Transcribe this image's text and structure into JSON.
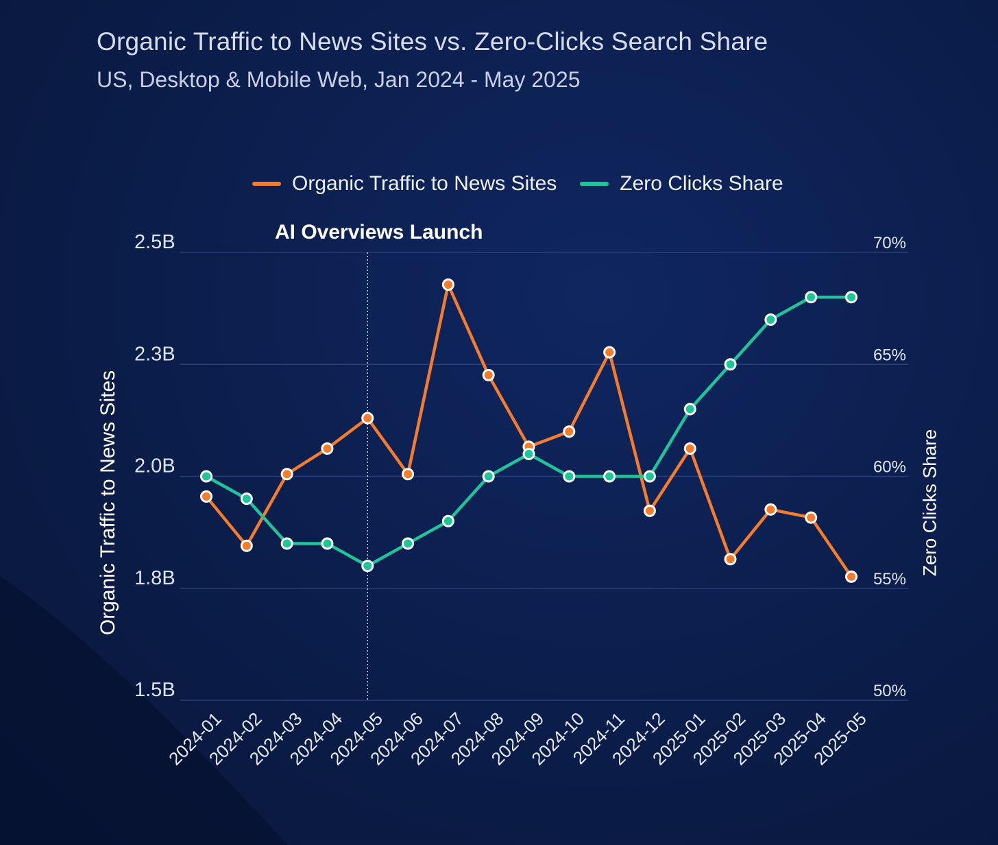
{
  "title": "Organic Traffic to News Sites vs. Zero-Clicks Search Share",
  "subtitle": "US, Desktop & Mobile Web, Jan 2024 - May 2025",
  "legend": [
    {
      "label": "Organic Traffic to News Sites",
      "color": "#f47c2c"
    },
    {
      "label": "Zero Clicks Share",
      "color": "#1fc49a"
    }
  ],
  "annotation": "AI Overviews Launch",
  "chart_data": {
    "type": "line",
    "categories": [
      "2024-01",
      "2024-02",
      "2024-03",
      "2024-04",
      "2024-05",
      "2024-06",
      "2024-07",
      "2024-08",
      "2024-09",
      "2024-10",
      "2024-11",
      "2024-12",
      "2025-01",
      "2025-02",
      "2025-03",
      "2025-04",
      "2025-05"
    ],
    "y_left": {
      "label": "Organic Traffic to News Sites",
      "range": [
        1.5,
        2.5
      ],
      "ticks": [
        {
          "value": 1.5,
          "label": "1.5B"
        },
        {
          "value": 1.75,
          "label": "1.8B"
        },
        {
          "value": 2.0,
          "label": "2.0B"
        },
        {
          "value": 2.25,
          "label": "2.3B"
        },
        {
          "value": 2.5,
          "label": "2.5B"
        }
      ]
    },
    "y_right": {
      "label": "Zero Clicks Share",
      "range": [
        50,
        70
      ],
      "ticks": [
        {
          "value": 50,
          "label": "50%"
        },
        {
          "value": 55,
          "label": "55%"
        },
        {
          "value": 60,
          "label": "60%"
        },
        {
          "value": 65,
          "label": "65%"
        },
        {
          "value": 70,
          "label": "70%"
        }
      ]
    },
    "series": [
      {
        "name": "Organic Traffic to News Sites",
        "axis": "left",
        "color": "#f47c2c",
        "unit": "B",
        "values": [
          1.955,
          1.845,
          2.005,
          2.062,
          2.13,
          2.005,
          2.428,
          2.226,
          2.066,
          2.1,
          2.277,
          1.923,
          2.062,
          1.815,
          1.926,
          1.908,
          1.776
        ]
      },
      {
        "name": "Zero Clicks Share",
        "axis": "right",
        "color": "#1fc49a",
        "unit": "%",
        "values": [
          60.0,
          59.0,
          57.0,
          57.0,
          56.0,
          57.0,
          58.0,
          60.0,
          61.0,
          60.0,
          60.0,
          60.0,
          63.0,
          65.0,
          67.0,
          68.0,
          68.0
        ]
      }
    ],
    "annotation_x": "2024-05",
    "grid": true,
    "legend_position": "top"
  }
}
